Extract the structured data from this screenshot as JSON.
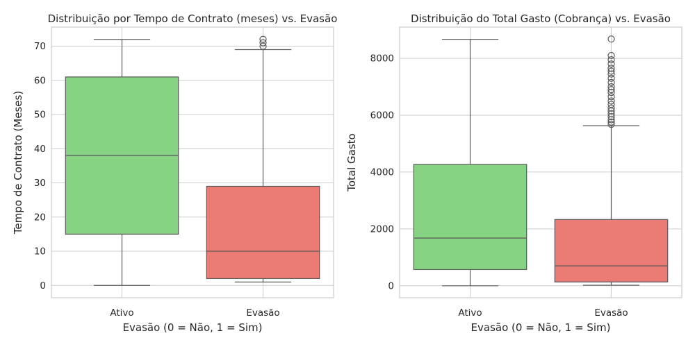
{
  "chart_data": [
    {
      "type": "box",
      "title": "Distribuição por Tempo de Contrato (meses) vs. Evasão",
      "xlabel": "Evasão (0 = Não, 1 = Sim)",
      "ylabel": "Tempo de Contrato (Meses)",
      "categories": [
        "Ativo",
        "Evasão"
      ],
      "colors": [
        "#85d383",
        "#ec7b75"
      ],
      "ylim": [
        -3.6,
        75.6
      ],
      "yticks": [
        0,
        10,
        20,
        30,
        40,
        50,
        60,
        70
      ],
      "grid": true,
      "boxes": [
        {
          "category": "Ativo",
          "whislo": 0,
          "q1": 15,
          "median": 38,
          "q3": 61,
          "whishi": 72,
          "fliers": []
        },
        {
          "category": "Evasão",
          "whislo": 1,
          "q1": 2,
          "median": 10,
          "q3": 29,
          "whishi": 69,
          "fliers": [
            70,
            71,
            72
          ]
        }
      ]
    },
    {
      "type": "box",
      "title": "Distribuição do Total Gasto (Cobrança) vs. Evasão",
      "xlabel": "Evasão (0 = Não, 1 = Sim)",
      "ylabel": "Total Gasto",
      "categories": [
        "Ativo",
        "Evasão"
      ],
      "colors": [
        "#85d383",
        "#ec7b75"
      ],
      "ylim": [
        -420,
        9100
      ],
      "yticks": [
        0,
        2000,
        4000,
        6000,
        8000
      ],
      "grid": true,
      "boxes": [
        {
          "category": "Ativo",
          "whislo": 0,
          "q1": 570,
          "median": 1680,
          "q3": 4270,
          "whishi": 8670,
          "fliers": []
        },
        {
          "category": "Evasão",
          "whislo": 19,
          "q1": 135,
          "median": 700,
          "q3": 2330,
          "whishi": 5630,
          "fliers": [
            5680,
            5760,
            5840,
            5950,
            6050,
            6150,
            6250,
            6380,
            6500,
            6650,
            6800,
            6900,
            7000,
            7150,
            7300,
            7450,
            7550,
            7650,
            7800,
            7950,
            8100,
            8680
          ]
        }
      ]
    }
  ]
}
